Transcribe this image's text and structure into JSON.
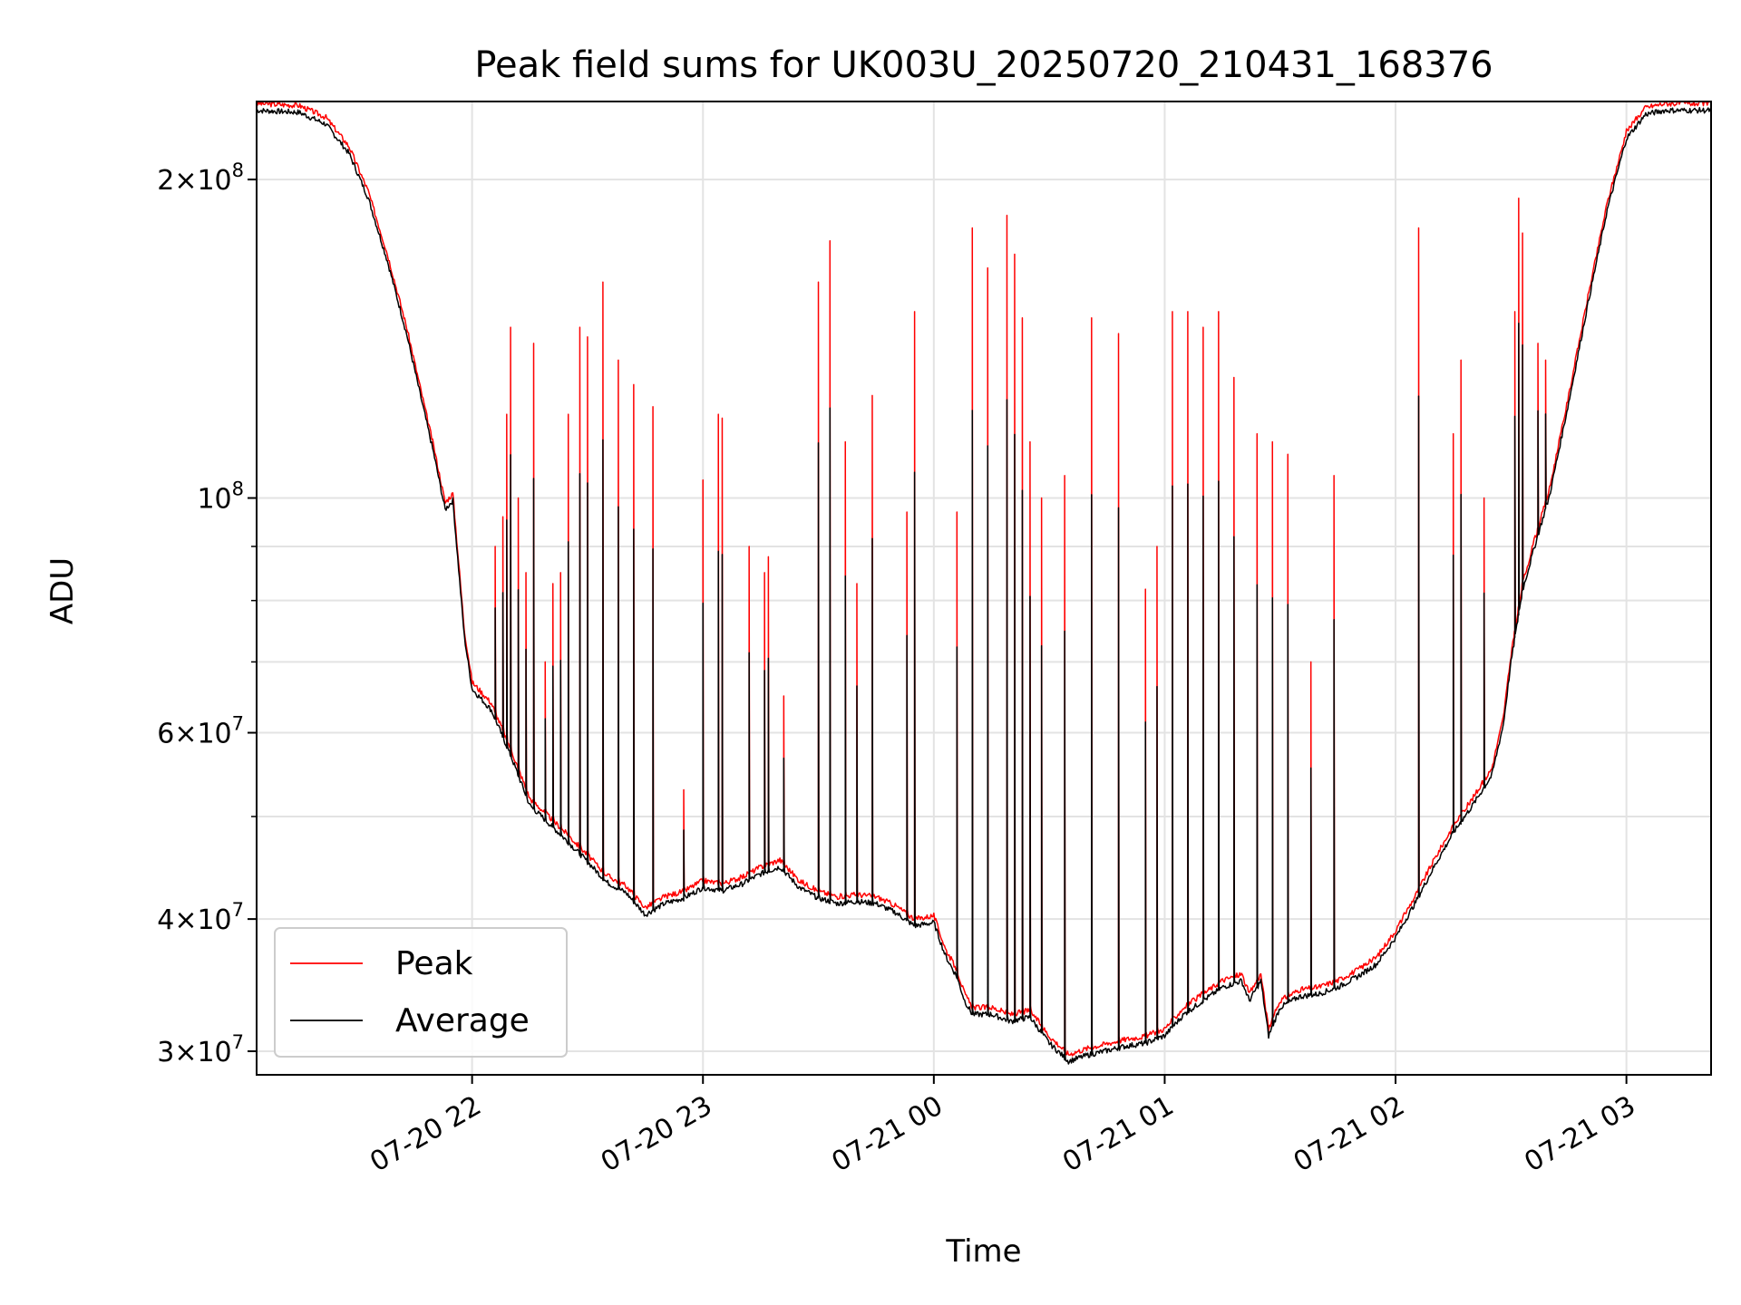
{
  "chart_data": {
    "type": "line",
    "title": "Peak field sums for UK003U_20250720_210431_168376",
    "xlabel": "Time",
    "ylabel": "ADU",
    "y_scale": "log",
    "grid": true,
    "legend_position": "lower-left",
    "x_range": [
      "2025-07-20 21:04",
      "2025-07-21 03:22"
    ],
    "y_range": [
      28500000,
      237000000
    ],
    "x_ticks": [
      {
        "value": "2025-07-20 22:00",
        "label": "07-20 22"
      },
      {
        "value": "2025-07-20 23:00",
        "label": "07-20 23"
      },
      {
        "value": "2025-07-21 00:00",
        "label": "07-21 00"
      },
      {
        "value": "2025-07-21 01:00",
        "label": "07-21 01"
      },
      {
        "value": "2025-07-21 02:00",
        "label": "07-21 02"
      },
      {
        "value": "2025-07-21 03:00",
        "label": "07-21 03"
      }
    ],
    "y_ticks": [
      {
        "value": 30000000,
        "mantissa": "3",
        "exponent": "7"
      },
      {
        "value": 40000000,
        "mantissa": "4",
        "exponent": "7"
      },
      {
        "value": 60000000,
        "mantissa": "6",
        "exponent": "7"
      },
      {
        "value": 100000000,
        "mantissa": "",
        "exponent": "8"
      },
      {
        "value": 200000000,
        "mantissa": "2",
        "exponent": "8"
      }
    ],
    "y_minor_ticks": [
      50000000,
      70000000,
      80000000,
      90000000
    ],
    "series": [
      {
        "name": "Peak",
        "color": "#ff0000",
        "baseline": [
          [
            "2025-07-20 21:04",
            236000000
          ],
          [
            "2025-07-20 21:15",
            235000000
          ],
          [
            "2025-07-20 21:22",
            229000000
          ],
          [
            "2025-07-20 21:28",
            215000000
          ],
          [
            "2025-07-20 21:33",
            195000000
          ],
          [
            "2025-07-20 21:38",
            170000000
          ],
          [
            "2025-07-20 21:43",
            145000000
          ],
          [
            "2025-07-20 21:47",
            125000000
          ],
          [
            "2025-07-20 21:50",
            112000000
          ],
          [
            "2025-07-20 21:53",
            99000000
          ],
          [
            "2025-07-20 21:55",
            101000000
          ],
          [
            "2025-07-20 21:58",
            75000000
          ],
          [
            "2025-07-20 22:00",
            67000000
          ],
          [
            "2025-07-20 22:05",
            64000000
          ],
          [
            "2025-07-20 22:10",
            58000000
          ],
          [
            "2025-07-20 22:15",
            52000000
          ],
          [
            "2025-07-20 22:20",
            50000000
          ],
          [
            "2025-07-20 22:25",
            48000000
          ],
          [
            "2025-07-20 22:30",
            46000000
          ],
          [
            "2025-07-20 22:35",
            44000000
          ],
          [
            "2025-07-20 22:40",
            43000000
          ],
          [
            "2025-07-20 22:45",
            41000000
          ],
          [
            "2025-07-20 22:50",
            42000000
          ],
          [
            "2025-07-20 22:55",
            42500000
          ],
          [
            "2025-07-20 23:00",
            43500000
          ],
          [
            "2025-07-20 23:05",
            43200000
          ],
          [
            "2025-07-20 23:10",
            43800000
          ],
          [
            "2025-07-20 23:15",
            44800000
          ],
          [
            "2025-07-20 23:20",
            45500000
          ],
          [
            "2025-07-20 23:25",
            43500000
          ],
          [
            "2025-07-20 23:30",
            42500000
          ],
          [
            "2025-07-20 23:35",
            42000000
          ],
          [
            "2025-07-20 23:40",
            42200000
          ],
          [
            "2025-07-20 23:45",
            42000000
          ],
          [
            "2025-07-20 23:50",
            41200000
          ],
          [
            "2025-07-20 23:55",
            40000000
          ],
          [
            "2025-07-21 00:00",
            40300000
          ],
          [
            "2025-07-21 00:03",
            37500000
          ],
          [
            "2025-07-21 00:06",
            35800000
          ],
          [
            "2025-07-21 00:08",
            34000000
          ],
          [
            "2025-07-21 00:10",
            33000000
          ],
          [
            "2025-07-21 00:15",
            33000000
          ],
          [
            "2025-07-21 00:20",
            32500000
          ],
          [
            "2025-07-21 00:25",
            32800000
          ],
          [
            "2025-07-21 00:30",
            31000000
          ],
          [
            "2025-07-21 00:35",
            29800000
          ],
          [
            "2025-07-21 00:40",
            30200000
          ],
          [
            "2025-07-21 00:45",
            30500000
          ],
          [
            "2025-07-21 00:50",
            30800000
          ],
          [
            "2025-07-21 00:55",
            31000000
          ],
          [
            "2025-07-21 01:00",
            31500000
          ],
          [
            "2025-07-21 01:05",
            33000000
          ],
          [
            "2025-07-21 01:10",
            34000000
          ],
          [
            "2025-07-21 01:15",
            35000000
          ],
          [
            "2025-07-21 01:20",
            35500000
          ],
          [
            "2025-07-21 01:22",
            34000000
          ],
          [
            "2025-07-21 01:25",
            35500000
          ],
          [
            "2025-07-21 01:27",
            31500000
          ],
          [
            "2025-07-21 01:30",
            33500000
          ],
          [
            "2025-07-21 01:35",
            34300000
          ],
          [
            "2025-07-21 01:40",
            34500000
          ],
          [
            "2025-07-21 01:45",
            35000000
          ],
          [
            "2025-07-21 01:50",
            35800000
          ],
          [
            "2025-07-21 01:55",
            36800000
          ],
          [
            "2025-07-21 02:00",
            39000000
          ],
          [
            "2025-07-21 02:05",
            42000000
          ],
          [
            "2025-07-21 02:10",
            45500000
          ],
          [
            "2025-07-21 02:15",
            49000000
          ],
          [
            "2025-07-21 02:20",
            52000000
          ],
          [
            "2025-07-21 02:25",
            55500000
          ],
          [
            "2025-07-21 02:28",
            62000000
          ],
          [
            "2025-07-21 02:30",
            71000000
          ],
          [
            "2025-07-21 02:33",
            83000000
          ],
          [
            "2025-07-21 02:36",
            91000000
          ],
          [
            "2025-07-21 02:40",
            102000000
          ],
          [
            "2025-07-21 02:45",
            125000000
          ],
          [
            "2025-07-21 02:50",
            155000000
          ],
          [
            "2025-07-21 02:55",
            190000000
          ],
          [
            "2025-07-21 03:00",
            222000000
          ],
          [
            "2025-07-21 03:05",
            234000000
          ],
          [
            "2025-07-21 03:10",
            236000000
          ],
          [
            "2025-07-21 03:22",
            236000000
          ]
        ],
        "spikes": [
          [
            "2025-07-20 22:06",
            90000000
          ],
          [
            "2025-07-20 22:08",
            96000000
          ],
          [
            "2025-07-20 22:09",
            120000000
          ],
          [
            "2025-07-20 22:10",
            145000000
          ],
          [
            "2025-07-20 22:12",
            100000000
          ],
          [
            "2025-07-20 22:14",
            85000000
          ],
          [
            "2025-07-20 22:16",
            140000000
          ],
          [
            "2025-07-20 22:19",
            70000000
          ],
          [
            "2025-07-20 22:21",
            83000000
          ],
          [
            "2025-07-20 22:23",
            85000000
          ],
          [
            "2025-07-20 22:25",
            120000000
          ],
          [
            "2025-07-20 22:28",
            145000000
          ],
          [
            "2025-07-20 22:30",
            142000000
          ],
          [
            "2025-07-20 22:34",
            160000000
          ],
          [
            "2025-07-20 22:38",
            135000000
          ],
          [
            "2025-07-20 22:42",
            128000000
          ],
          [
            "2025-07-20 22:47",
            122000000
          ],
          [
            "2025-07-20 22:55",
            53000000
          ],
          [
            "2025-07-20 23:00",
            104000000
          ],
          [
            "2025-07-20 23:04",
            120000000
          ],
          [
            "2025-07-20 23:05",
            119000000
          ],
          [
            "2025-07-20 23:12",
            90000000
          ],
          [
            "2025-07-20 23:16",
            85000000
          ],
          [
            "2025-07-20 23:17",
            88000000
          ],
          [
            "2025-07-20 23:21",
            65000000
          ],
          [
            "2025-07-20 23:30",
            160000000
          ],
          [
            "2025-07-20 23:33",
            175000000
          ],
          [
            "2025-07-20 23:37",
            113000000
          ],
          [
            "2025-07-20 23:40",
            83000000
          ],
          [
            "2025-07-20 23:44",
            125000000
          ],
          [
            "2025-07-20 23:53",
            97000000
          ],
          [
            "2025-07-20 23:55",
            150000000
          ],
          [
            "2025-07-21 00:06",
            97000000
          ],
          [
            "2025-07-21 00:10",
            180000000
          ],
          [
            "2025-07-21 00:14",
            165000000
          ],
          [
            "2025-07-21 00:19",
            185000000
          ],
          [
            "2025-07-21 00:21",
            170000000
          ],
          [
            "2025-07-21 00:23",
            148000000
          ],
          [
            "2025-07-21 00:25",
            113000000
          ],
          [
            "2025-07-21 00:28",
            100000000
          ],
          [
            "2025-07-21 00:34",
            105000000
          ],
          [
            "2025-07-21 00:41",
            148000000
          ],
          [
            "2025-07-21 00:48",
            143000000
          ],
          [
            "2025-07-21 00:55",
            82000000
          ],
          [
            "2025-07-21 00:58",
            90000000
          ],
          [
            "2025-07-21 01:02",
            150000000
          ],
          [
            "2025-07-21 01:06",
            150000000
          ],
          [
            "2025-07-21 01:10",
            145000000
          ],
          [
            "2025-07-21 01:14",
            150000000
          ],
          [
            "2025-07-21 01:18",
            130000000
          ],
          [
            "2025-07-21 01:24",
            115000000
          ],
          [
            "2025-07-21 01:28",
            113000000
          ],
          [
            "2025-07-21 01:32",
            110000000
          ],
          [
            "2025-07-21 01:38",
            70000000
          ],
          [
            "2025-07-21 01:44",
            105000000
          ],
          [
            "2025-07-21 02:06",
            180000000
          ],
          [
            "2025-07-21 02:15",
            115000000
          ],
          [
            "2025-07-21 02:17",
            135000000
          ],
          [
            "2025-07-21 02:23",
            100000000
          ],
          [
            "2025-07-21 02:31",
            150000000
          ],
          [
            "2025-07-21 02:32",
            192000000
          ],
          [
            "2025-07-21 02:33",
            178000000
          ],
          [
            "2025-07-21 02:37",
            140000000
          ],
          [
            "2025-07-21 02:39",
            135000000
          ]
        ]
      },
      {
        "name": "Average",
        "color": "#000000",
        "offset_ratio": 0.985,
        "spike_ratio": 0.6
      }
    ]
  }
}
